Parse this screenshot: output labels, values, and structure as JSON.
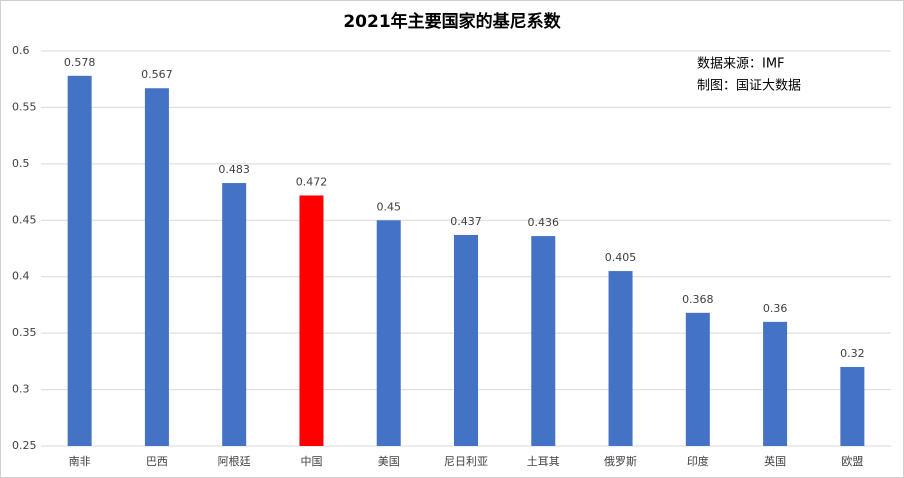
{
  "chart_data": {
    "type": "bar",
    "title": "2021年主要国家的基尼系数",
    "annotations": [
      "数据来源：IMF",
      "制图：国证大数据"
    ],
    "categories": [
      "南非",
      "巴西",
      "阿根廷",
      "中国",
      "美国",
      "尼日利亚",
      "土耳其",
      "俄罗斯",
      "印度",
      "英国",
      "欧盟"
    ],
    "values": [
      0.578,
      0.567,
      0.483,
      0.472,
      0.45,
      0.437,
      0.436,
      0.405,
      0.368,
      0.36,
      0.32
    ],
    "colors": [
      "#4472c4",
      "#4472c4",
      "#4472c4",
      "#ff0000",
      "#4472c4",
      "#4472c4",
      "#4472c4",
      "#4472c4",
      "#4472c4",
      "#4472c4",
      "#4472c4"
    ],
    "ylim": [
      0.25,
      0.6
    ],
    "yticks": [
      0.25,
      0.3,
      0.35,
      0.4,
      0.45,
      0.5,
      0.55,
      0.6
    ],
    "grid": true
  }
}
